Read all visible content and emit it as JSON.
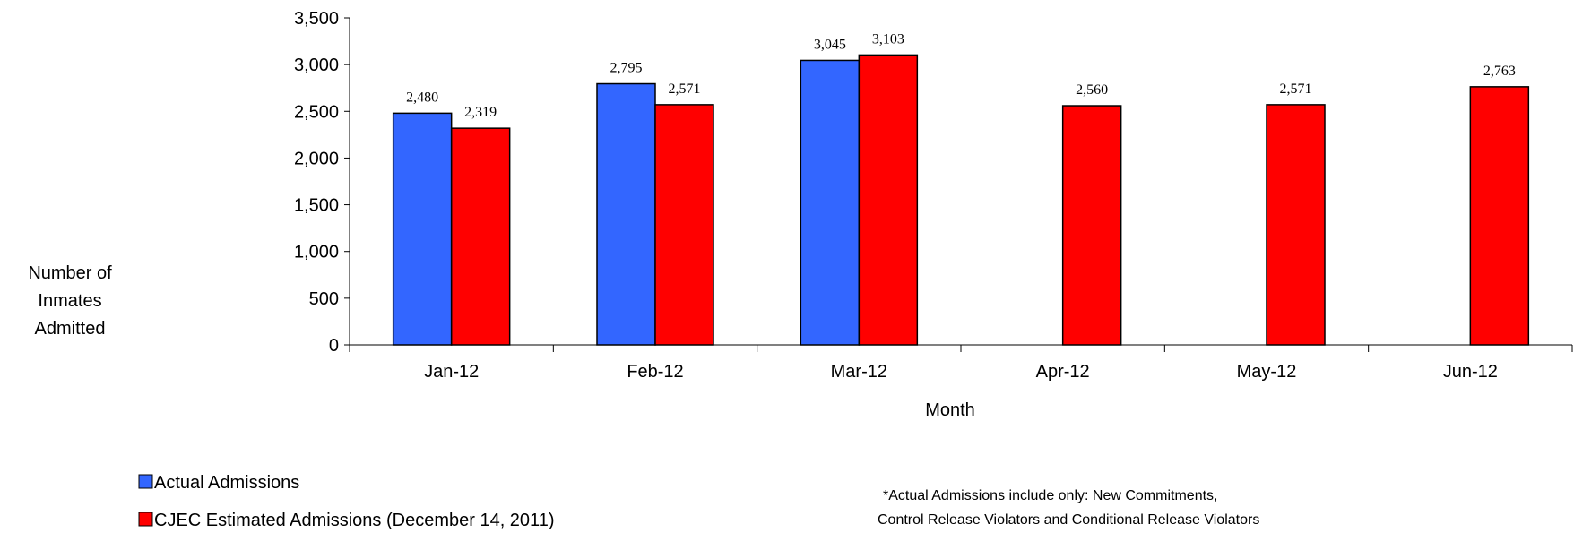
{
  "chart_data": {
    "type": "bar",
    "categories": [
      "Jan-12",
      "Feb-12",
      "Mar-12",
      "Apr-12",
      "May-12",
      "Jun-12"
    ],
    "series": [
      {
        "name": "Actual Admissions",
        "color": "#3366ff",
        "values": [
          2480,
          2795,
          3045,
          null,
          null,
          null
        ],
        "labels": [
          "2,480",
          "2,795",
          "3,045",
          "",
          "",
          ""
        ]
      },
      {
        "name": "CJEC Estimated Admissions (December 14, 2011)",
        "color": "#ff0000",
        "values": [
          2319,
          2571,
          3103,
          2560,
          2571,
          2763
        ],
        "labels": [
          "2,319",
          "2,571",
          "3,103",
          "2,560",
          "2,571",
          "2,763"
        ]
      }
    ],
    "yticks": [
      "0",
      "500",
      "1,000",
      "1,500",
      "2,000",
      "2,500",
      "3,000",
      "3,500"
    ],
    "ytick_values": [
      0,
      500,
      1000,
      1500,
      2000,
      2500,
      3000,
      3500
    ],
    "ylim": [
      0,
      3500
    ],
    "xlabel": "Month",
    "ylabel_lines": [
      "Number of",
      "Inmates",
      "Admitted"
    ],
    "legend_placement": "bottom-left",
    "grid": false,
    "note_lines": [
      "*Actual Admissions include only: New Commitments,",
      "Control Release Violators and Conditional Release Violators"
    ]
  }
}
